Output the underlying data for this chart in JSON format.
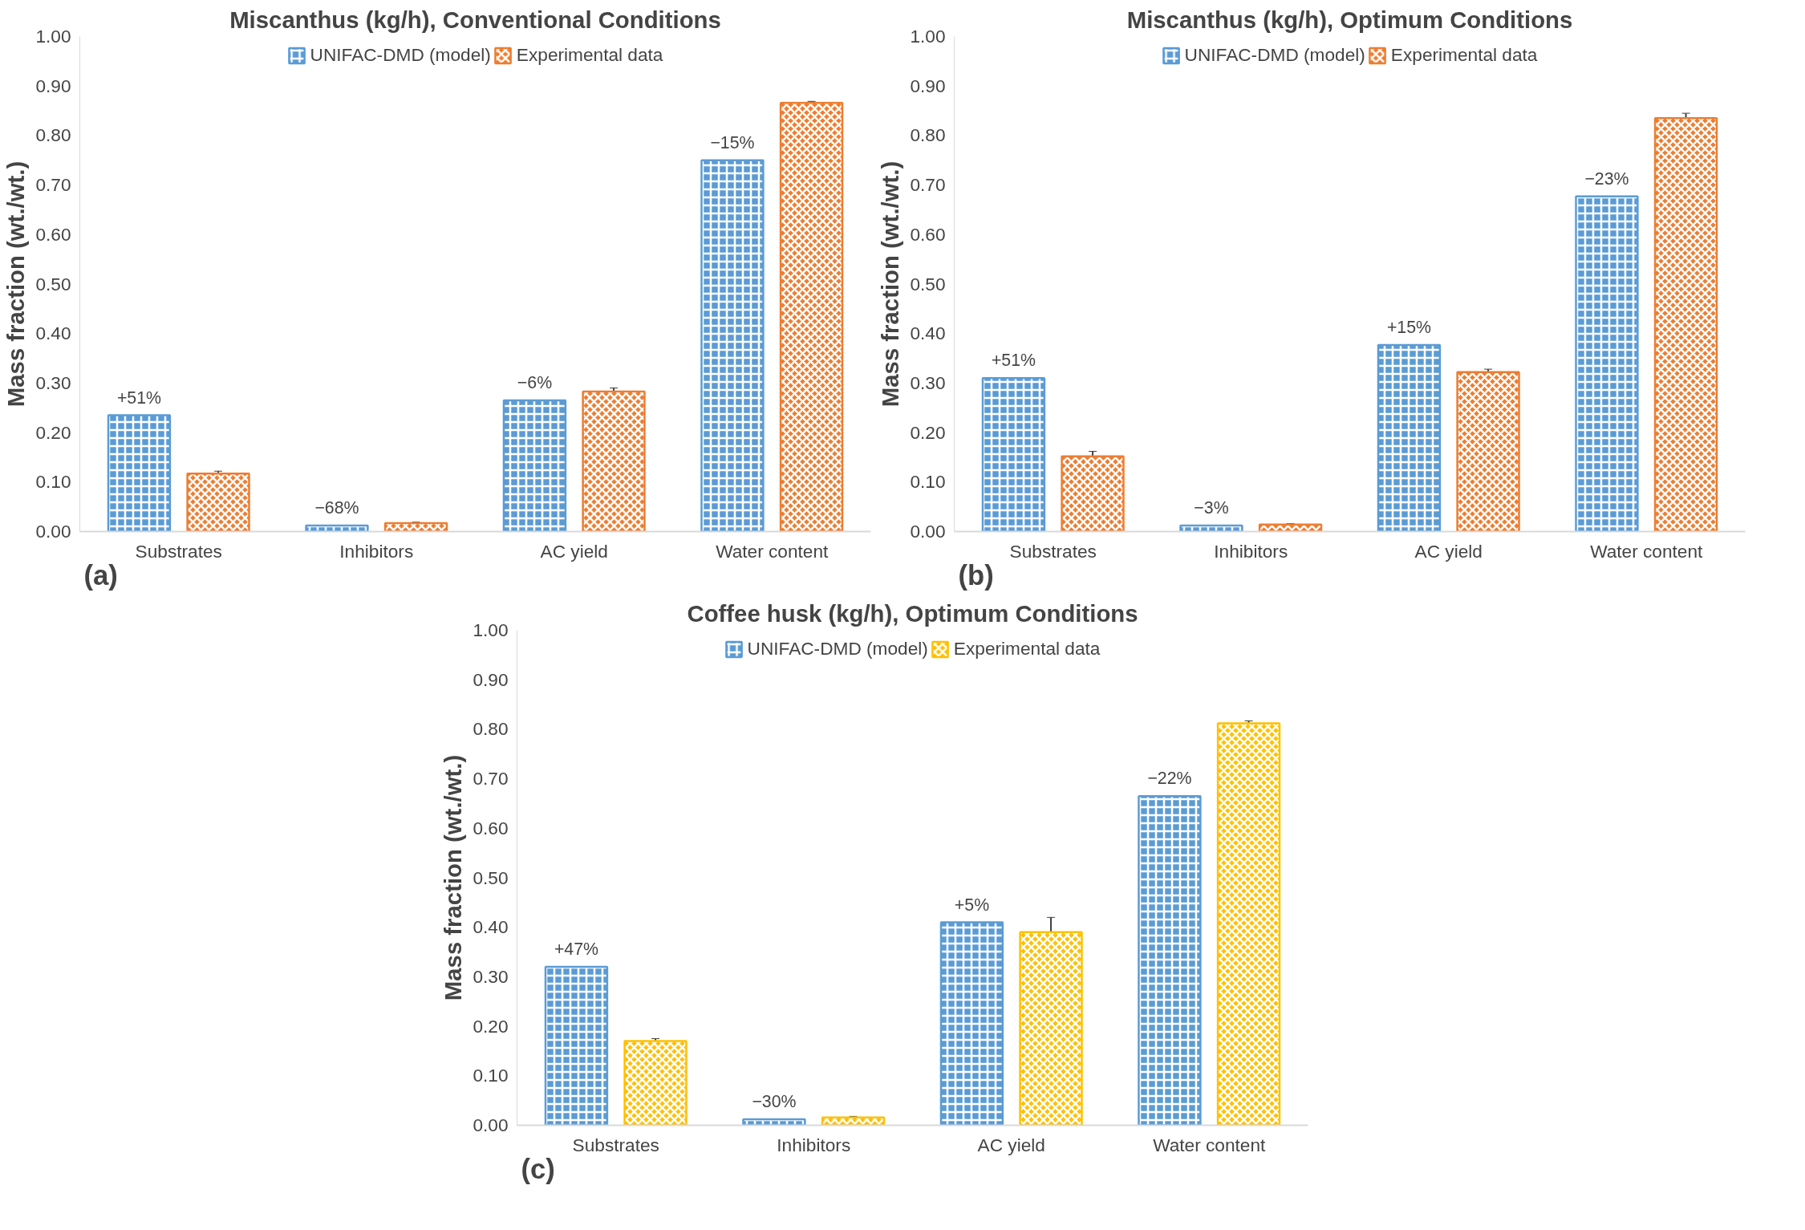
{
  "chart_data": [
    {
      "type": "bar",
      "title": "Miscanthus (kg/h), Conventional Conditions",
      "ylabel": "Mass fraction (wt./wt.)",
      "categories": [
        "Substrates",
        "Inhibitors",
        "AC yield",
        "Water content"
      ],
      "ylim": [
        0,
        1
      ],
      "yticks": [
        {
          "value": 0,
          "label": "0.00"
        },
        {
          "value": 0.1,
          "label": "0.10"
        },
        {
          "value": 0.2,
          "label": "0.20"
        },
        {
          "value": 0.3,
          "label": "0.30"
        },
        {
          "value": 0.4,
          "label": "0.40"
        },
        {
          "value": 0.5,
          "label": "0.50"
        },
        {
          "value": 0.6,
          "label": "0.60"
        },
        {
          "value": 0.7,
          "label": "0.70"
        },
        {
          "value": 0.8,
          "label": "0.80"
        },
        {
          "value": 0.9,
          "label": "0.90"
        },
        {
          "value": 1,
          "label": "1.00"
        }
      ],
      "grid": false,
      "legend": "top",
      "series": [
        {
          "name": "UNIFAC-DMD (model)",
          "color": "#5b9bd5",
          "values": [
            0.235,
            0.012,
            0.265,
            0.75
          ]
        },
        {
          "name": "Experimental data",
          "color": "#ed7d31",
          "values": [
            0.117,
            0.017,
            0.283,
            0.866
          ],
          "errors": [
            0.005,
            0.002,
            0.007,
            0.003
          ]
        }
      ],
      "annotations": [
        "+51%",
        "−68%",
        "−6%",
        "−15%",
        "(a)"
      ]
    },
    {
      "type": "bar",
      "title": "Miscanthus (kg/h), Optimum Conditions",
      "ylabel": "Mass fraction (wt./wt.)",
      "categories": [
        "Substrates",
        "Inhibitors",
        "AC yield",
        "Water content"
      ],
      "ylim": [
        0,
        1
      ],
      "yticks": [
        {
          "value": 0,
          "label": "0.00"
        },
        {
          "value": 0.1,
          "label": "0.10"
        },
        {
          "value": 0.2,
          "label": "0.20"
        },
        {
          "value": 0.3,
          "label": "0.30"
        },
        {
          "value": 0.4,
          "label": "0.40"
        },
        {
          "value": 0.5,
          "label": "0.50"
        },
        {
          "value": 0.6,
          "label": "0.60"
        },
        {
          "value": 0.7,
          "label": "0.70"
        },
        {
          "value": 0.8,
          "label": "0.80"
        },
        {
          "value": 0.9,
          "label": "0.90"
        },
        {
          "value": 1,
          "label": "1.00"
        }
      ],
      "grid": false,
      "legend": "top",
      "series": [
        {
          "name": "UNIFAC-DMD (model)",
          "color": "#5b9bd5",
          "values": [
            0.31,
            0.012,
            0.377,
            0.677
          ]
        },
        {
          "name": "Experimental data",
          "color": "#ed7d31",
          "values": [
            0.152,
            0.014,
            0.322,
            0.835
          ],
          "errors": [
            0.01,
            0.002,
            0.006,
            0.01
          ]
        }
      ],
      "annotations": [
        "+51%",
        "−3%",
        "+15%",
        "−23%",
        "(b)"
      ]
    },
    {
      "type": "bar",
      "title": "Coffee husk (kg/h), Optimum Conditions",
      "ylabel": "Mass fraction (wt./wt.)",
      "categories": [
        "Substrates",
        "Inhibitors",
        "AC yield",
        "Water content"
      ],
      "ylim": [
        0,
        1
      ],
      "yticks": [
        {
          "value": 0,
          "label": "0.00"
        },
        {
          "value": 0.1,
          "label": "0.10"
        },
        {
          "value": 0.2,
          "label": "0.20"
        },
        {
          "value": 0.3,
          "label": "0.30"
        },
        {
          "value": 0.4,
          "label": "0.40"
        },
        {
          "value": 0.5,
          "label": "0.50"
        },
        {
          "value": 0.6,
          "label": "0.60"
        },
        {
          "value": 0.7,
          "label": "0.70"
        },
        {
          "value": 0.8,
          "label": "0.80"
        },
        {
          "value": 0.9,
          "label": "0.90"
        },
        {
          "value": 1,
          "label": "1.00"
        }
      ],
      "grid": false,
      "legend": "top",
      "series": [
        {
          "name": "UNIFAC-DMD (model)",
          "color": "#5b9bd5",
          "values": [
            0.32,
            0.012,
            0.41,
            0.665
          ]
        },
        {
          "name": "Experimental data",
          "color": "#ffc000",
          "values": [
            0.17,
            0.016,
            0.39,
            0.812
          ],
          "errors": [
            0.005,
            0.002,
            0.03,
            0.005
          ]
        }
      ],
      "annotations": [
        "+47%",
        "−30%",
        "+5%",
        "−22%",
        "(c)"
      ]
    }
  ]
}
